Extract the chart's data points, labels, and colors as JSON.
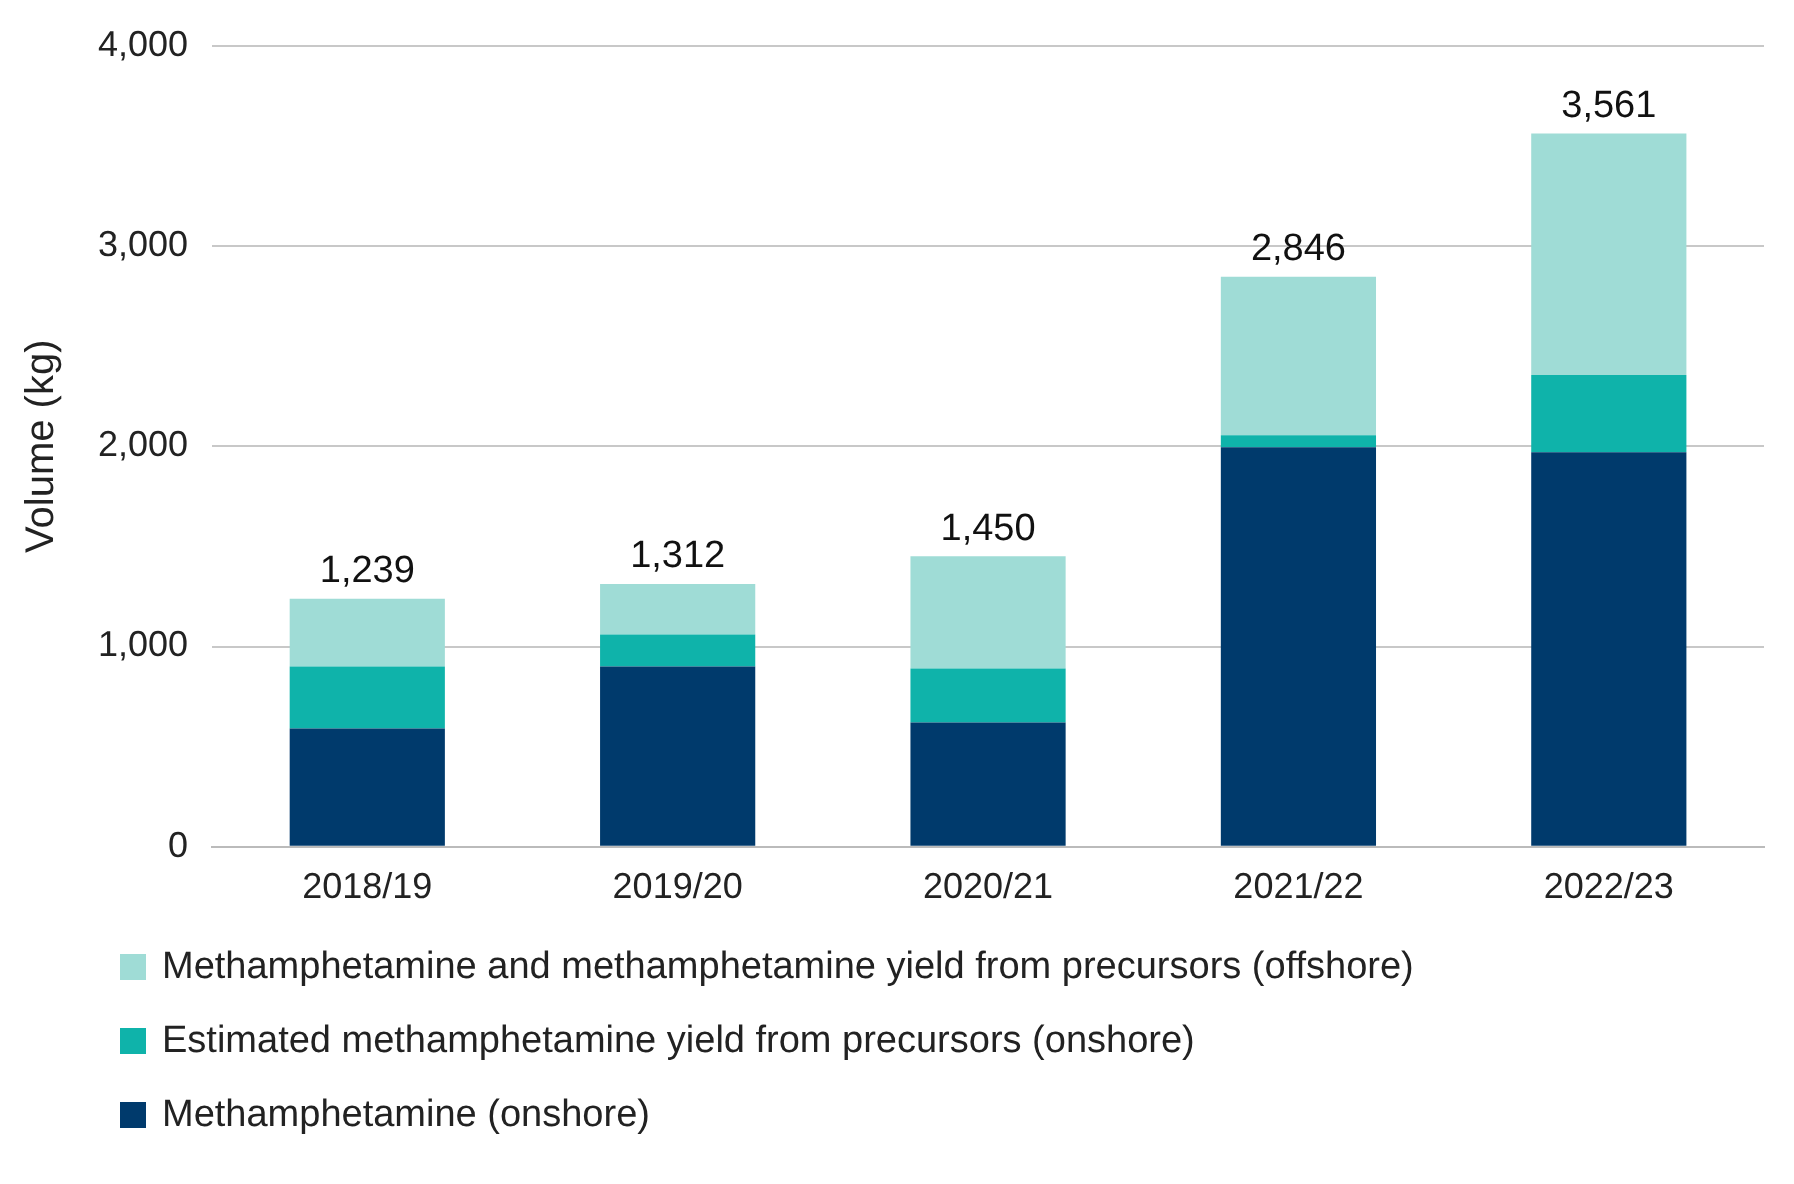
{
  "chart_data": {
    "type": "bar",
    "stacked": true,
    "ylabel": "Volume (kg)",
    "categories": [
      "2018/19",
      "2019/20",
      "2020/21",
      "2021/22",
      "2022/23"
    ],
    "series": [
      {
        "name": "Methamphetamine (onshore)",
        "color": "#003a6c",
        "values": [
          590,
          900,
          620,
          1995,
          1970
        ]
      },
      {
        "name": "Estimated methamphetamine yield from precursors (onshore)",
        "color": "#0fb3aa",
        "values": [
          310,
          160,
          270,
          60,
          385
        ]
      },
      {
        "name": "Methamphetamine and methamphetamine yield from precursors (offshore)",
        "color": "#9fdcd6",
        "values": [
          339,
          252,
          560,
          791,
          1206
        ]
      }
    ],
    "totals": [
      "1,239",
      "1,312",
      "1,450",
      "2,846",
      "3,561"
    ],
    "ylim": [
      0,
      4000
    ],
    "yticks": [
      {
        "value": 0,
        "label": "0"
      },
      {
        "value": 1000,
        "label": "1,000"
      },
      {
        "value": 2000,
        "label": "2,000"
      },
      {
        "value": 3000,
        "label": "3,000"
      },
      {
        "value": 4000,
        "label": "4,000"
      }
    ],
    "grid": "y",
    "legend": "bottom"
  }
}
